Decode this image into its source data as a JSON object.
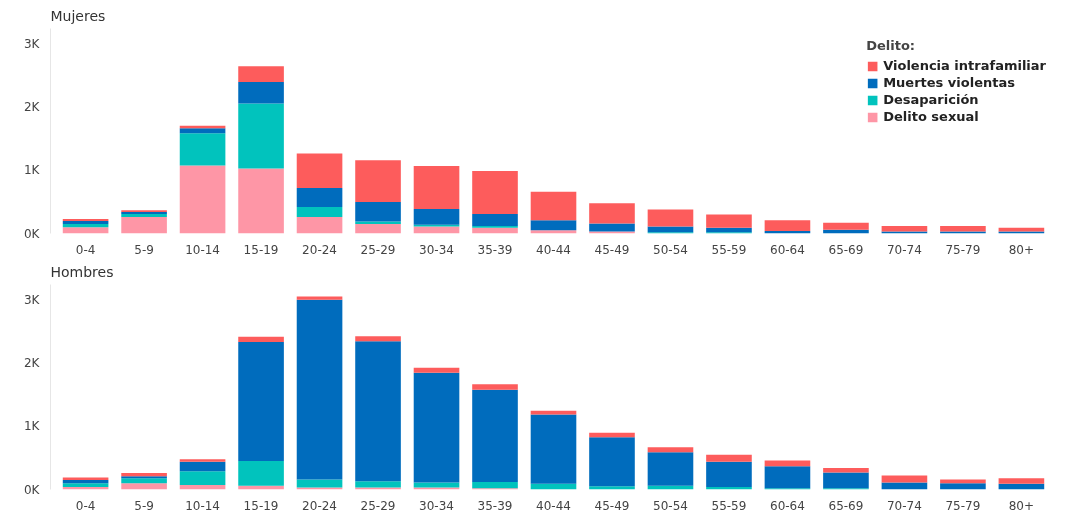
{
  "chart_data": [
    {
      "type": "bar",
      "title": "Mujeres",
      "stacked": true,
      "legend": "top right",
      "legend_title": "Delito:",
      "grid": false,
      "categories": [
        "0-4",
        "5-9",
        "10-14",
        "15-19",
        "20-24",
        "25-29",
        "30-34",
        "35-39",
        "40-44",
        "45-49",
        "50-54",
        "55-59",
        "60-64",
        "65-69",
        "70-74",
        "75-79",
        "80+"
      ],
      "ylim": [
        0,
        3250
      ],
      "yticks": [
        {
          "value": 0,
          "label": "0K"
        },
        {
          "value": 1000,
          "label": "1K"
        },
        {
          "value": 2000,
          "label": "2K"
        },
        {
          "value": 3000,
          "label": "3K"
        }
      ],
      "series": [
        {
          "name": "Delito sexual",
          "color": "#fe96a6",
          "values": [
            100,
            260,
            1080,
            1030,
            260,
            150,
            110,
            90,
            50,
            30,
            0,
            0,
            0,
            0,
            0,
            0,
            0
          ]
        },
        {
          "name": "Desaparición",
          "color": "#01c3bd",
          "values": [
            50,
            50,
            510,
            1030,
            160,
            40,
            30,
            30,
            0,
            0,
            20,
            20,
            0,
            0,
            0,
            0,
            0
          ]
        },
        {
          "name": "Muertes violentas",
          "color": "#006cbd",
          "values": [
            50,
            30,
            80,
            340,
            300,
            310,
            250,
            190,
            160,
            130,
            90,
            70,
            40,
            60,
            30,
            30,
            30
          ]
        },
        {
          "name": "Violencia intrafamiliar",
          "color": "#fd5c5c",
          "values": [
            30,
            30,
            40,
            250,
            550,
            660,
            680,
            680,
            450,
            320,
            270,
            210,
            170,
            110,
            90,
            90,
            60
          ]
        }
      ]
    },
    {
      "type": "bar",
      "title": "Hombres",
      "stacked": true,
      "legend": false,
      "grid": false,
      "categories": [
        "0-4",
        "5-9",
        "10-14",
        "15-19",
        "20-24",
        "25-29",
        "30-34",
        "35-39",
        "40-44",
        "45-49",
        "50-54",
        "55-59",
        "60-64",
        "65-69",
        "70-74",
        "75-79",
        "80+"
      ],
      "ylim": [
        0,
        3250
      ],
      "yticks": [
        {
          "value": 0,
          "label": "0K"
        },
        {
          "value": 1000,
          "label": "1K"
        },
        {
          "value": 2000,
          "label": "2K"
        },
        {
          "value": 3000,
          "label": "3K"
        }
      ],
      "series": [
        {
          "color": "#fe96a6",
          "values": [
            40,
            100,
            70,
            60,
            30,
            30,
            30,
            20,
            0,
            0,
            0,
            0,
            0,
            0,
            0,
            0,
            0
          ]
        },
        {
          "color": "#01c3bd",
          "values": [
            60,
            80,
            220,
            390,
            130,
            100,
            80,
            100,
            90,
            50,
            60,
            40,
            20,
            20,
            0,
            0,
            0
          ]
        },
        {
          "color": "#006cbd",
          "values": [
            50,
            30,
            150,
            1890,
            2850,
            2220,
            1740,
            1460,
            1100,
            780,
            530,
            400,
            350,
            250,
            110,
            100,
            90
          ]
        },
        {
          "color": "#fd5c5c",
          "values": [
            40,
            50,
            40,
            80,
            50,
            80,
            80,
            90,
            60,
            70,
            80,
            110,
            90,
            70,
            110,
            60,
            90
          ]
        }
      ]
    }
  ]
}
